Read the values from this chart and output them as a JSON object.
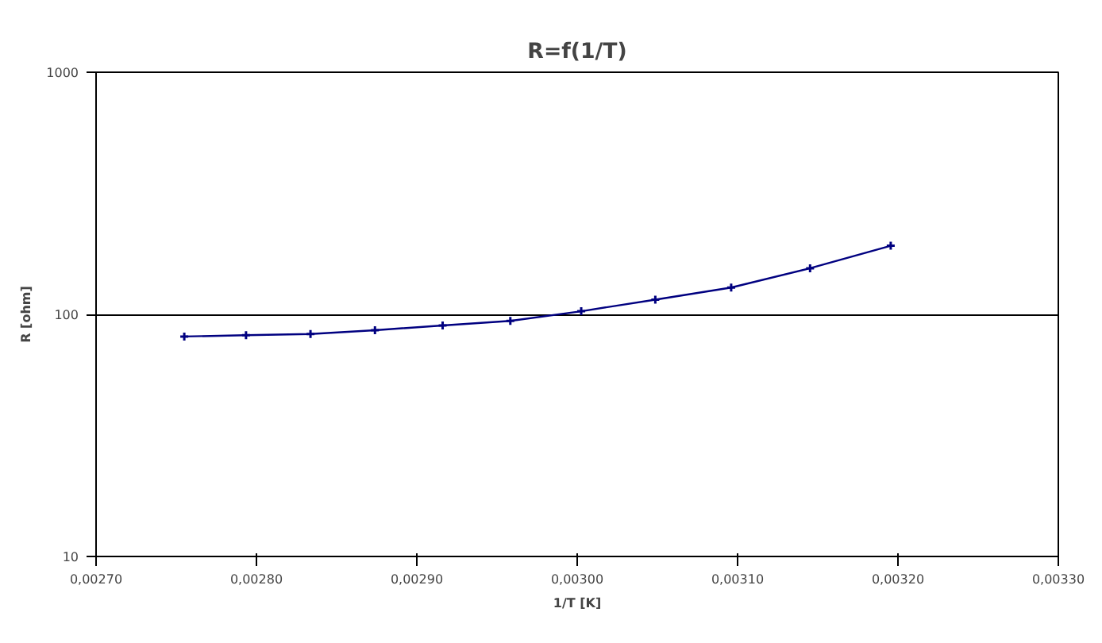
{
  "chart_data": {
    "type": "line",
    "title": "R=f(1/T)",
    "xlabel": "1/T [K]",
    "ylabel": "R [ohm]",
    "x": [
      0.002755,
      0.0027935,
      0.0028337,
      0.0028739,
      0.0029161,
      0.0029583,
      0.0030025,
      0.0030487,
      0.003096,
      0.0031452,
      0.0031955
    ],
    "series": [
      {
        "color": "#000080",
        "values": [
          81,
          82,
          83,
          86,
          90,
          94,
          103,
          115,
          129,
          155,
          192
        ]
      }
    ],
    "xlim": [
      0.0027,
      0.0033
    ],
    "xticks": [
      {
        "value": 0.0027,
        "label": "0,00270"
      },
      {
        "value": 0.0028,
        "label": "0,00280"
      },
      {
        "value": 0.0029,
        "label": "0,00290"
      },
      {
        "value": 0.003,
        "label": "0,00300"
      },
      {
        "value": 0.0031,
        "label": "0,00310"
      },
      {
        "value": 0.0032,
        "label": "0,00320"
      },
      {
        "value": 0.0033,
        "label": "0,00330"
      }
    ],
    "ylim": [
      10,
      1000
    ],
    "yticks": [
      10,
      100,
      1000
    ],
    "log": true,
    "grid": "y",
    "marker": "cross",
    "line_style": "solid"
  }
}
